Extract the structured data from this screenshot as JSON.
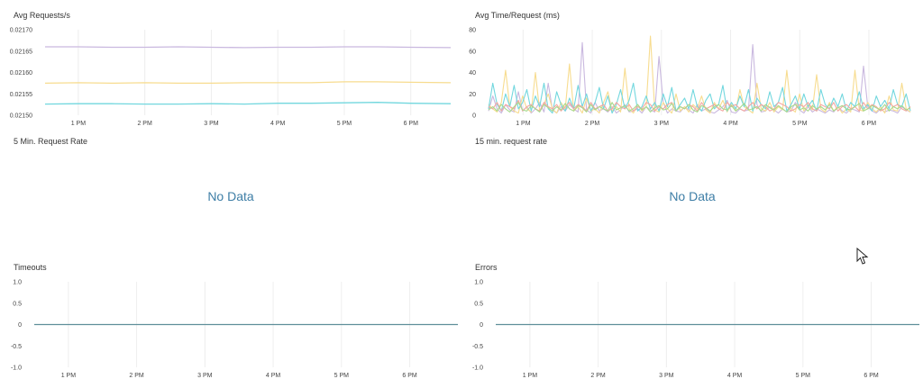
{
  "chart_data": [
    {
      "type": "line",
      "title": "Avg Requests/s",
      "ylim": [
        0.0215,
        0.0217
      ],
      "yticks": [
        "0.02170",
        "0.02165",
        "0.02160",
        "0.02155",
        "0.02150"
      ],
      "xticks": [
        "1 PM",
        "2 PM",
        "3 PM",
        "4 PM",
        "5 PM",
        "6 PM"
      ],
      "x_hours": [
        12.5,
        13,
        13.5,
        14,
        14.5,
        15,
        15.5,
        16,
        16.5,
        17,
        17.5,
        18,
        18.6
      ],
      "series": [
        {
          "color": "#c9b8df",
          "values": [
            0.02166,
            0.02166,
            0.021659,
            0.021659,
            0.02166,
            0.021659,
            0.021658,
            0.021659,
            0.021659,
            0.02166,
            0.02166,
            0.021659,
            0.021658
          ]
        },
        {
          "color": "#f7dc8f",
          "values": [
            0.021575,
            0.021576,
            0.021575,
            0.021576,
            0.021575,
            0.021575,
            0.021576,
            0.021576,
            0.021576,
            0.021578,
            0.021578,
            0.021577,
            0.021576
          ]
        },
        {
          "color": "#72d7de",
          "values": [
            0.021526,
            0.021527,
            0.021527,
            0.021526,
            0.021526,
            0.021527,
            0.021526,
            0.021528,
            0.021528,
            0.021529,
            0.02153,
            0.021528,
            0.021527
          ]
        }
      ]
    },
    {
      "type": "line",
      "title": "Avg Time/Request (ms)",
      "ylim": [
        0,
        80
      ],
      "yticks": [
        "80",
        "60",
        "40",
        "20",
        "0"
      ],
      "xticks": [
        "1 PM",
        "2 PM",
        "3 PM",
        "4 PM",
        "5 PM",
        "6 PM"
      ],
      "x_start_hour": 12.5,
      "x_end_hour": 18.6,
      "series": [
        {
          "color": "#c9b8df",
          "values": [
            4,
            18,
            6,
            2,
            10,
            5,
            3,
            22,
            4,
            8,
            2,
            6,
            12,
            3,
            30,
            5,
            2,
            8,
            4,
            10,
            6,
            3,
            68,
            5,
            2,
            12,
            4,
            6,
            3,
            8,
            2,
            5,
            10,
            3,
            4,
            6,
            2,
            8,
            5,
            3,
            55,
            12,
            2,
            6,
            4,
            3,
            8,
            5,
            2,
            10,
            4,
            6,
            3,
            2,
            5,
            8,
            14,
            3,
            2,
            6,
            4,
            5,
            66,
            10,
            3,
            4,
            8,
            5,
            2,
            6,
            3,
            4,
            12,
            5,
            2,
            8,
            3,
            6,
            4,
            2,
            5,
            3,
            8,
            4,
            2,
            6,
            5,
            3,
            46,
            8,
            4,
            2,
            6,
            3,
            5,
            4,
            2,
            8,
            5,
            3
          ]
        },
        {
          "color": "#f7dc8f",
          "values": [
            10,
            6,
            3,
            12,
            42,
            8,
            4,
            2,
            18,
            6,
            3,
            40,
            4,
            10,
            20,
            6,
            2,
            12,
            6,
            48,
            4,
            8,
            2,
            16,
            4,
            6,
            2,
            12,
            22,
            4,
            8,
            3,
            44,
            6,
            2,
            10,
            4,
            8,
            74,
            5,
            3,
            12,
            6,
            2,
            20,
            4,
            8,
            3,
            10,
            6,
            18,
            5,
            2,
            12,
            6,
            14,
            3,
            10,
            4,
            24,
            8,
            5,
            2,
            30,
            6,
            4,
            12,
            3,
            8,
            5,
            42,
            6,
            3,
            20,
            4,
            10,
            5,
            38,
            6,
            3,
            12,
            4,
            8,
            2,
            6,
            3,
            42,
            5,
            4,
            12,
            6,
            3,
            8,
            2,
            18,
            5,
            4,
            30,
            6,
            3
          ]
        },
        {
          "color": "#72d7de",
          "values": [
            6,
            30,
            10,
            4,
            20,
            8,
            28,
            6,
            12,
            24,
            4,
            18,
            8,
            30,
            6,
            2,
            22,
            10,
            4,
            16,
            6,
            28,
            8,
            20,
            4,
            12,
            26,
            6,
            18,
            2,
            10,
            24,
            6,
            14,
            30,
            4,
            8,
            18,
            6,
            12,
            4,
            20,
            8,
            26,
            4,
            10,
            16,
            6,
            24,
            8,
            4,
            14,
            20,
            6,
            10,
            28,
            4,
            12,
            6,
            18,
            8,
            24,
            4,
            16,
            10,
            6,
            22,
            8,
            12,
            26,
            4,
            10,
            18,
            6,
            20,
            8,
            14,
            4,
            24,
            10,
            6,
            16,
            8,
            20,
            4,
            12,
            8,
            22,
            6,
            10,
            4,
            18,
            8,
            14,
            6,
            24,
            10,
            8,
            20,
            4
          ]
        },
        {
          "color": "#f4a7a2",
          "values": [
            8,
            6,
            12,
            4,
            10,
            8,
            6,
            14,
            4,
            8,
            10,
            6,
            4,
            12,
            8,
            6,
            10,
            4,
            8,
            12,
            6,
            10,
            8,
            4,
            12,
            6,
            8,
            10,
            4,
            6,
            12,
            8,
            6,
            10,
            4,
            8,
            6,
            12,
            10,
            4,
            8,
            6,
            10,
            12,
            4,
            8,
            6,
            10,
            8,
            4,
            12,
            6,
            8,
            10,
            6,
            4,
            12,
            8,
            10,
            6,
            4,
            8,
            12,
            6,
            10,
            8,
            4,
            6,
            12,
            10,
            8,
            4,
            6,
            10,
            8,
            12,
            6,
            4,
            10,
            8,
            6,
            12,
            4,
            8,
            10,
            6,
            8,
            4,
            12,
            6,
            10,
            8,
            4,
            6,
            12,
            8,
            10,
            6,
            4,
            8
          ]
        },
        {
          "color": "#a7d98d",
          "values": [
            5,
            8,
            4,
            10,
            6,
            3,
            8,
            12,
            5,
            4,
            9,
            6,
            3,
            10,
            7,
            4,
            8,
            5,
            11,
            6,
            4,
            9,
            7,
            3,
            10,
            5,
            8,
            6,
            4,
            12,
            5,
            7,
            9,
            4,
            6,
            10,
            5,
            8,
            3,
            7,
            9,
            5,
            6,
            11,
            4,
            8,
            6,
            10,
            5,
            3,
            9,
            7,
            4,
            8,
            10,
            6,
            5,
            9,
            4,
            7,
            11,
            5,
            6,
            8,
            4,
            10,
            7,
            5,
            9,
            6,
            3,
            8,
            10,
            5,
            7,
            4,
            9,
            6,
            8,
            5,
            10,
            4,
            7,
            9,
            6,
            5,
            8,
            11,
            4,
            6,
            9,
            7,
            5,
            10,
            4,
            8,
            6,
            9,
            5,
            7
          ]
        }
      ]
    },
    {
      "type": "line",
      "title": "Timeouts",
      "ylim": [
        -1,
        1
      ],
      "yticks": [
        "1.0",
        "0.5",
        "0",
        "-0.5",
        "-1.0"
      ],
      "xticks": [
        "1 PM",
        "2 PM",
        "3 PM",
        "4 PM",
        "5 PM",
        "6 PM"
      ],
      "series": [
        {
          "color": "#5f8f9a",
          "values": [
            0,
            0
          ]
        }
      ]
    },
    {
      "type": "line",
      "title": "Errors",
      "ylim": [
        -1,
        1
      ],
      "yticks": [
        "1.0",
        "0.5",
        "0",
        "-0.5",
        "-1.0"
      ],
      "xticks": [
        "1 PM",
        "2 PM",
        "3 PM",
        "4 PM",
        "5 PM",
        "6 PM"
      ],
      "series": [
        {
          "color": "#5f8f9a",
          "values": [
            0,
            0
          ]
        }
      ]
    }
  ],
  "panels": {
    "rate5": {
      "title": "5 Min. Request Rate",
      "message": "No Data"
    },
    "rate15": {
      "title": "15 min. request rate",
      "message": "No Data"
    }
  }
}
